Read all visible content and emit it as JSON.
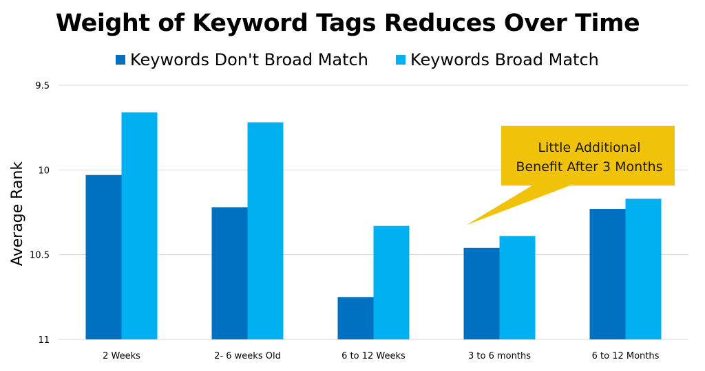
{
  "chart_data": {
    "type": "bar",
    "title": "Weight of Keyword Tags Reduces Over Time",
    "xlabel": "",
    "ylabel": "Average Rank",
    "categories": [
      "2 Weeks",
      "2- 6 weeks Old",
      "6 to 12 Weeks",
      "3 to 6 months",
      "6 to 12 Months"
    ],
    "series": [
      {
        "name": "Keywords Don't Broad Match",
        "color": "#0070c0",
        "values": [
          10.03,
          10.22,
          10.75,
          10.46,
          10.23
        ]
      },
      {
        "name": "Keywords Broad Match",
        "color": "#00b0f0",
        "values": [
          9.66,
          9.72,
          10.33,
          10.39,
          10.17
        ]
      }
    ],
    "ylim": [
      9.5,
      11
    ],
    "y_inverted": true,
    "yticks": [
      "9.5",
      "10",
      "10.5",
      "11"
    ],
    "ytick_values": [
      9.5,
      10,
      10.5,
      11
    ],
    "grid": true,
    "legend_position": "top",
    "annotation": {
      "lines": [
        "Little Additional",
        "Benefit After 3 Months"
      ],
      "fill": "#f0c20a",
      "points_to": "3 to 6 months"
    }
  }
}
